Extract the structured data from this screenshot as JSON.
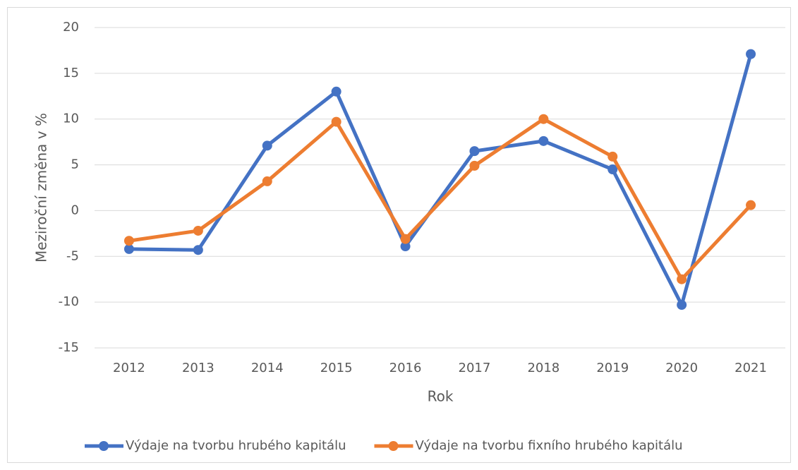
{
  "chart_data": {
    "type": "line",
    "x_label": "Rok",
    "y_label": "Meziroční změna v %",
    "categories": [
      "2012",
      "2013",
      "2014",
      "2015",
      "2016",
      "2017",
      "2018",
      "2019",
      "2020",
      "2021"
    ],
    "series": [
      {
        "name": "Výdaje na tvorbu hrubého kapitálu",
        "color": "#4472c4",
        "values": [
          -4.2,
          -4.3,
          7.1,
          13.0,
          -3.9,
          6.5,
          7.6,
          4.5,
          -10.3,
          17.1
        ]
      },
      {
        "name": "Výdaje na tvorbu fixního hrubého kapitálu",
        "color": "#ed7d31",
        "values": [
          -3.3,
          -2.2,
          3.2,
          9.7,
          -3.1,
          4.9,
          10.0,
          5.9,
          -7.5,
          0.6
        ]
      }
    ],
    "ylim": [
      -15,
      20
    ],
    "yticks": [
      -15,
      -10,
      -5,
      0,
      5,
      10,
      15,
      20
    ],
    "grid": true,
    "legend": "bottom"
  }
}
